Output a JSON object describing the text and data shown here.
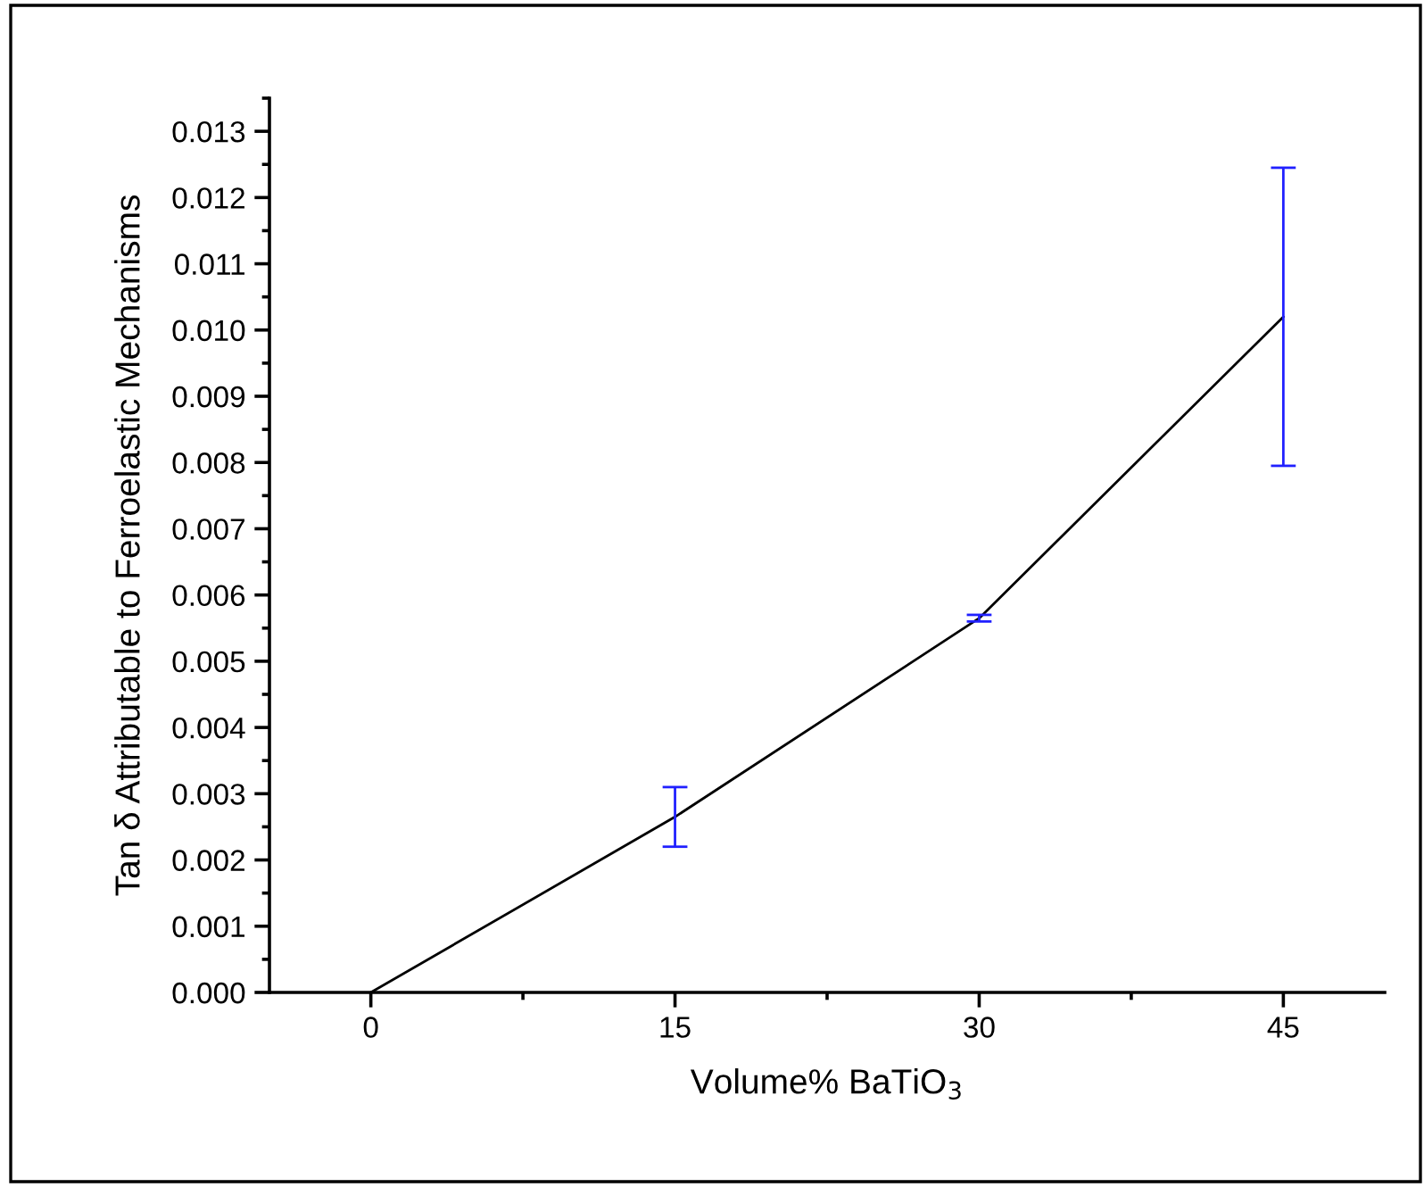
{
  "chart_data": {
    "type": "line",
    "xlabel": "Volume% BaTiO$_{3}$",
    "ylabel": "Tan δ Attributable to Ferroelastic Mechanisms",
    "x": [
      0,
      15,
      30,
      45
    ],
    "series": [
      {
        "color": "#000000",
        "values": [
          0,
          0.00265,
          0.00565,
          0.0102
        ],
        "errors": [
          null,
          [
            0.0022,
            0.0031
          ],
          [
            0.0056,
            0.0057
          ],
          [
            0.00795,
            0.01245
          ]
        ]
      }
    ],
    "xlim": [
      -5,
      50
    ],
    "xticks": [
      0,
      15,
      30,
      45
    ],
    "ylim": [
      0,
      0.0135
    ],
    "yticks": [
      {
        "value": 0,
        "label": "0.000"
      },
      {
        "value": 0.001,
        "label": "0.001"
      },
      {
        "value": 0.002,
        "label": "0.002"
      },
      {
        "value": 0.003,
        "label": "0.003"
      },
      {
        "value": 0.004,
        "label": "0.004"
      },
      {
        "value": 0.005,
        "label": "0.005"
      },
      {
        "value": 0.006,
        "label": "0.006"
      },
      {
        "value": 0.007,
        "label": "0.007"
      },
      {
        "value": 0.008,
        "label": "0.008"
      },
      {
        "value": 0.009,
        "label": "0.009"
      },
      {
        "value": 0.01,
        "label": "0.010"
      },
      {
        "value": 0.011,
        "label": "0.011"
      },
      {
        "value": 0.012,
        "label": "0.012"
      },
      {
        "value": 0.013,
        "label": "0.013"
      }
    ],
    "grid": false,
    "legend": false,
    "marker": "none",
    "line_style": "solid"
  }
}
